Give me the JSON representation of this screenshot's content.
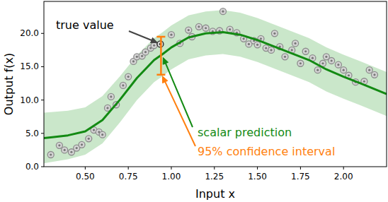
{
  "chart_data": {
    "type": "line",
    "x_label": "Input x",
    "y_label": "Output f(x)",
    "xlim": [
      0.26,
      2.25
    ],
    "ylim": [
      0,
      24.8
    ],
    "xticks": [
      {
        "value": 0.5,
        "label": "0.50"
      },
      {
        "value": 0.75,
        "label": "0.75"
      },
      {
        "value": 1.0,
        "label": "1.00"
      },
      {
        "value": 1.25,
        "label": "1.25"
      },
      {
        "value": 1.5,
        "label": "1.50"
      },
      {
        "value": 1.75,
        "label": "1.75"
      },
      {
        "value": 2.0,
        "label": "2.00"
      }
    ],
    "yticks": [
      {
        "value": 0,
        "label": "0.0"
      },
      {
        "value": 5,
        "label": "5.0"
      },
      {
        "value": 10,
        "label": "10.0"
      },
      {
        "value": 15,
        "label": "15.0"
      },
      {
        "value": 20,
        "label": "20.0"
      }
    ],
    "grid": false,
    "x": [
      0.26,
      0.3,
      0.4,
      0.5,
      0.6,
      0.7,
      0.8,
      0.9,
      0.95,
      1.0,
      1.1,
      1.2,
      1.3,
      1.4,
      1.5,
      1.6,
      1.7,
      1.8,
      1.9,
      2.0,
      2.1,
      2.25
    ],
    "series": [
      {
        "type": "line",
        "color": "#138a13",
        "values": [
          4.3,
          4.4,
          4.7,
          5.3,
          7.0,
          10.0,
          13.3,
          16.0,
          16.9,
          17.9,
          19.4,
          20.0,
          20.2,
          19.8,
          19.0,
          18.0,
          17.0,
          16.0,
          14.6,
          13.5,
          12.5,
          10.9
        ]
      },
      {
        "type": "area",
        "color": "#9fd49f",
        "upper": [
          8.1,
          8.2,
          8.4,
          8.9,
          10.6,
          13.5,
          16.7,
          19.3,
          20.2,
          21.2,
          22.7,
          23.3,
          23.5,
          23.1,
          22.3,
          21.3,
          20.3,
          19.3,
          17.9,
          16.8,
          15.8,
          14.2
        ],
        "lower": [
          0.5,
          0.7,
          1.1,
          1.8,
          3.5,
          6.6,
          10.0,
          12.7,
          13.6,
          14.6,
          16.1,
          16.7,
          16.9,
          16.5,
          15.7,
          14.7,
          13.7,
          12.7,
          11.3,
          10.2,
          9.2,
          7.6
        ]
      },
      {
        "type": "scatter",
        "color": "#8c8c8c",
        "marker": "circle",
        "x": [
          0.3,
          0.35,
          0.38,
          0.42,
          0.45,
          0.48,
          0.52,
          0.55,
          0.58,
          0.6,
          0.63,
          0.65,
          0.68,
          0.72,
          0.75,
          0.78,
          0.8,
          0.83,
          0.85,
          0.88,
          0.9,
          1.0,
          1.05,
          1.1,
          1.12,
          1.16,
          1.2,
          1.24,
          1.28,
          1.3,
          1.34,
          1.38,
          1.42,
          1.45,
          1.48,
          1.5,
          1.52,
          1.55,
          1.58,
          1.6,
          1.63,
          1.66,
          1.7,
          1.72,
          1.75,
          1.78,
          1.82,
          1.85,
          1.88,
          1.9,
          1.93,
          1.97,
          2.0,
          2.03,
          2.07,
          2.12,
          2.15,
          2.18
        ],
        "values": [
          1.8,
          3.2,
          2.5,
          2.2,
          2.8,
          3.3,
          4.2,
          5.5,
          5.2,
          4.8,
          8.8,
          10.5,
          9.3,
          12.2,
          13.5,
          15.8,
          16.5,
          16.6,
          17.2,
          17.8,
          18.2,
          19.8,
          18.5,
          20.5,
          19.5,
          21.0,
          20.8,
          20.3,
          20.4,
          23.3,
          20.6,
          20.1,
          19.2,
          18.4,
          18.9,
          18.3,
          19.2,
          17.8,
          17.5,
          20.0,
          18.0,
          16.5,
          17.5,
          18.5,
          15.5,
          17.3,
          16.3,
          14.5,
          15.5,
          16.5,
          15.9,
          15.3,
          14.5,
          13.7,
          12.7,
          12.8,
          14.5,
          13.8
        ]
      }
    ],
    "annotations": [
      {
        "text": "true value",
        "x": 0.936,
        "y": 18.4,
        "color": "#000000"
      },
      {
        "text": "scalar prediction",
        "x": 0.94,
        "y": 16.7,
        "color": "#138a13"
      },
      {
        "text": "95% confidence interval",
        "x": 0.94,
        "value": 16.7,
        "low": 13.8,
        "high": 19.5,
        "color": "#ff7f0e"
      }
    ]
  }
}
